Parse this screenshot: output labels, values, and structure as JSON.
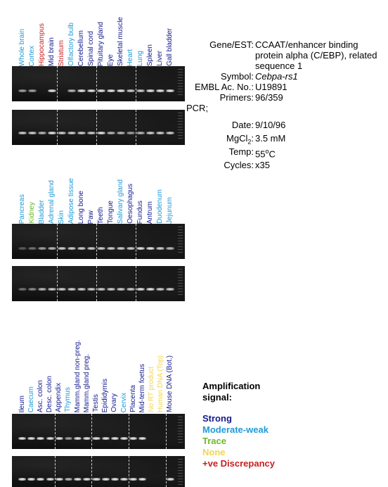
{
  "gene_info": {
    "gene_est": {
      "label": "Gene/EST:",
      "value": "CCAAT/enhancer binding protein alpha (C/EBP), related sequence 1"
    },
    "symbol": {
      "label": "Symbol:",
      "value": "Cebpa-rs1"
    },
    "embl": {
      "label": "EMBL Ac. No.:",
      "value": "U19891"
    },
    "primers": {
      "label": "Primers:",
      "value": "96/359"
    },
    "pcr": {
      "label": "PCR;"
    },
    "date": {
      "label": "Date:",
      "value": "9/10/96"
    },
    "mgcl2": {
      "label": "MgCl",
      "sub": "2",
      "suffix": ":",
      "value": "3.5 mM"
    },
    "temp": {
      "label": "Temp:",
      "value": "55",
      "sup": "o",
      "unit": "C"
    },
    "cycles": {
      "label": "Cycles:",
      "value": "x35"
    }
  },
  "colors": {
    "strong": "#131a8c",
    "moderate_weak": "#1e9ad8",
    "trace": "#6fb82a",
    "none": "#f2d64b",
    "discrepancy": "#c81e1e"
  },
  "panels": [
    {
      "lanes": [
        {
          "label": "Whole brain",
          "signal": "moderate_weak",
          "bands": [
            0.6,
            0.8
          ]
        },
        {
          "label": "Cortex",
          "signal": "moderate_weak",
          "bands": [
            0.6,
            0.8
          ]
        },
        {
          "label": "Hippocampus",
          "signal": "discrepancy",
          "bands": [
            0.0,
            0.7
          ]
        },
        {
          "label": "Mid brain",
          "signal": "strong",
          "bands": [
            0.9,
            0.9
          ]
        },
        {
          "label": "Striatum",
          "signal": "discrepancy",
          "bands": [
            0.0,
            0.8
          ]
        },
        {
          "label": "Olfactory bulb",
          "signal": "moderate_weak",
          "bands": [
            0.7,
            0.8
          ]
        },
        {
          "label": "Cerebellum",
          "signal": "strong",
          "bands": [
            0.9,
            0.8
          ]
        },
        {
          "label": "Spinal cord",
          "signal": "strong",
          "bands": [
            0.9,
            0.8
          ]
        },
        {
          "label": "Pituitary gland",
          "signal": "strong",
          "bands": [
            0.9,
            0.9
          ]
        },
        {
          "label": "Eye",
          "signal": "strong",
          "bands": [
            0.9,
            0.7
          ]
        },
        {
          "label": "Skeletal muscle",
          "signal": "strong",
          "bands": [
            0.9,
            0.7
          ]
        },
        {
          "label": "Heart",
          "signal": "moderate_weak",
          "bands": [
            0.8,
            0.6
          ]
        },
        {
          "label": "Lung",
          "signal": "moderate_weak",
          "bands": [
            0.8,
            0.7
          ]
        },
        {
          "label": "Spleen",
          "signal": "strong",
          "bands": [
            0.9,
            0.8
          ]
        },
        {
          "label": "Liver",
          "signal": "strong",
          "bands": [
            0.9,
            0.8
          ]
        },
        {
          "label": "Gall bladder",
          "signal": "strong",
          "bands": [
            0.9,
            0.8
          ]
        }
      ]
    },
    {
      "lanes": [
        {
          "label": "Pancreas",
          "signal": "moderate_weak",
          "bands": [
            0.3,
            0.4
          ]
        },
        {
          "label": "Kidney",
          "signal": "trace",
          "bands": [
            0.4,
            0.5
          ]
        },
        {
          "label": "Bladder",
          "signal": "moderate_weak",
          "bands": [
            0.6,
            0.7
          ]
        },
        {
          "label": "Adrenal gland",
          "signal": "moderate_weak",
          "bands": [
            0.7,
            0.8
          ]
        },
        {
          "label": "Skin",
          "signal": "moderate_weak",
          "bands": [
            0.8,
            0.8
          ]
        },
        {
          "label": "Adipose tissue",
          "signal": "moderate_weak",
          "bands": [
            0.8,
            0.8
          ]
        },
        {
          "label": "Long bone",
          "signal": "strong",
          "bands": [
            0.8,
            0.8
          ]
        },
        {
          "label": "Paw",
          "signal": "strong",
          "bands": [
            0.8,
            0.8
          ]
        },
        {
          "label": "Teeth",
          "signal": "strong",
          "bands": [
            0.8,
            0.8
          ]
        },
        {
          "label": "Tongue",
          "signal": "strong",
          "bands": [
            0.8,
            0.8
          ]
        },
        {
          "label": "Salivary gland",
          "signal": "moderate_weak",
          "bands": [
            0.8,
            0.8
          ]
        },
        {
          "label": "Oesophagus",
          "signal": "strong",
          "bands": [
            0.8,
            0.8
          ]
        },
        {
          "label": "Fundus",
          "signal": "strong",
          "bands": [
            0.9,
            0.9
          ]
        },
        {
          "label": "Antrum",
          "signal": "strong",
          "bands": [
            0.9,
            0.9
          ]
        },
        {
          "label": "Duodenum",
          "signal": "moderate_weak",
          "bands": [
            0.8,
            0.8
          ]
        },
        {
          "label": "Jejunum",
          "signal": "moderate_weak",
          "bands": [
            0.7,
            0.8
          ]
        }
      ]
    },
    {
      "lanes": [
        {
          "label": "Ileum",
          "signal": "strong",
          "bands": [
            0.9,
            0.9
          ]
        },
        {
          "label": "Caecum",
          "signal": "moderate_weak",
          "bands": [
            0.9,
            0.9
          ]
        },
        {
          "label": "Asc. colon",
          "signal": "strong",
          "bands": [
            0.9,
            0.9
          ]
        },
        {
          "label": "Desc. colon",
          "signal": "strong",
          "bands": [
            0.9,
            0.9
          ]
        },
        {
          "label": "Appendix",
          "signal": "strong",
          "bands": [
            0.9,
            0.9
          ]
        },
        {
          "label": "Thymus",
          "signal": "moderate_weak",
          "bands": [
            0.6,
            0.7
          ]
        },
        {
          "label": "Mamm.gland non-preg.",
          "signal": "strong",
          "bands": [
            0.9,
            0.9
          ]
        },
        {
          "label": "Mamm.gland preg.",
          "signal": "strong",
          "bands": [
            0.9,
            0.9
          ]
        },
        {
          "label": "Testis",
          "signal": "strong",
          "bands": [
            0.9,
            0.9
          ]
        },
        {
          "label": "Epididymis",
          "signal": "strong",
          "bands": [
            0.9,
            0.9
          ]
        },
        {
          "label": "Ovary",
          "signal": "strong",
          "bands": [
            0.9,
            0.9
          ]
        },
        {
          "label": "Cervix",
          "signal": "moderate_weak",
          "bands": [
            0.9,
            0.9
          ]
        },
        {
          "label": "Placenta",
          "signal": "strong",
          "bands": [
            0.9,
            0.9
          ]
        },
        {
          "label": "Mid-term foetus",
          "signal": "strong",
          "bands": [
            0.9,
            0.9
          ]
        },
        {
          "label": "No RT product",
          "signal": "none",
          "bands": [
            0.0,
            0.0
          ]
        },
        {
          "label": "Human DNA (Top)",
          "signal": "none",
          "bands": [
            0.0,
            0.0
          ]
        },
        {
          "label": "Mouse DNA (Bot.)",
          "signal": "strong",
          "bands": [
            0.0,
            0.9
          ]
        }
      ]
    }
  ],
  "legend": {
    "title_line1": "Amplification",
    "title_line2": "signal:",
    "items": [
      {
        "label": "Strong",
        "signal": "strong"
      },
      {
        "label": "Moderate-weak",
        "signal": "moderate_weak"
      },
      {
        "label": "Trace",
        "signal": "trace"
      },
      {
        "label": "None",
        "signal": "none"
      },
      {
        "label": "+ve Discrepancy",
        "signal": "discrepancy"
      }
    ]
  }
}
